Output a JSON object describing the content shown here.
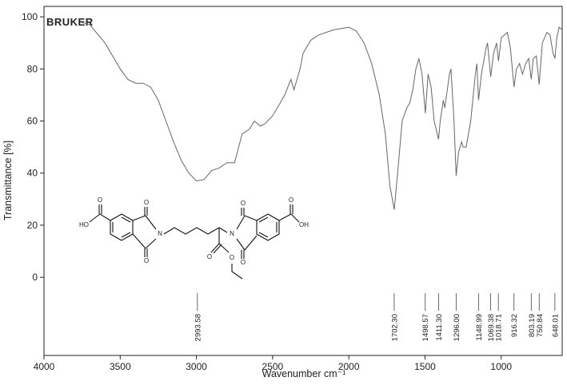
{
  "chart_data": {
    "type": "line",
    "brand": "BRUKER",
    "x_label": "Wavenumber cm⁻¹",
    "y_label": "Transmittance [%]",
    "color": "#666666",
    "xlim": [
      4000,
      600
    ],
    "ylim": [
      -30,
      104
    ],
    "xticks": [
      4000,
      3500,
      3000,
      2500,
      2000,
      1500,
      1000
    ],
    "yticks": [
      0,
      20,
      40,
      60,
      80,
      100
    ],
    "x": [
      3760,
      3700,
      3600,
      3500,
      3450,
      3400,
      3350,
      3300,
      3250,
      3200,
      3150,
      3100,
      3050,
      3000,
      2950,
      2900,
      2850,
      2800,
      2750,
      2700,
      2650,
      2620,
      2580,
      2550,
      2500,
      2450,
      2420,
      2400,
      2380,
      2360,
      2320,
      2300,
      2250,
      2200,
      2100,
      2000,
      1950,
      1900,
      1850,
      1800,
      1760,
      1730,
      1702,
      1680,
      1650,
      1620,
      1600,
      1580,
      1560,
      1540,
      1520,
      1498,
      1480,
      1460,
      1440,
      1411,
      1400,
      1380,
      1370,
      1340,
      1330,
      1310,
      1296,
      1280,
      1260,
      1250,
      1230,
      1200,
      1170,
      1160,
      1149,
      1130,
      1100,
      1090,
      1069,
      1050,
      1030,
      1018,
      1000,
      960,
      940,
      916,
      900,
      880,
      860,
      840,
      820,
      803,
      790,
      770,
      751,
      730,
      700,
      680,
      660,
      648,
      635,
      620,
      600
    ],
    "y": [
      98,
      97,
      90,
      80,
      76,
      74.5,
      74.5,
      73,
      68,
      60,
      52,
      45,
      40,
      37,
      37.5,
      41,
      42,
      44,
      44,
      55,
      57,
      60,
      58,
      59,
      62,
      67,
      70,
      73,
      76,
      72,
      80,
      86,
      91,
      93,
      95,
      96,
      94.5,
      90,
      82,
      70,
      55,
      35,
      26,
      40,
      60,
      65,
      67,
      72,
      80,
      84,
      78,
      63,
      78,
      73,
      60,
      53,
      60,
      68,
      65,
      78,
      80,
      60,
      39,
      48,
      52,
      50,
      50,
      60,
      78,
      82,
      68,
      78,
      88,
      90,
      77,
      86,
      90,
      83,
      92,
      94,
      88,
      73,
      80,
      82,
      78,
      82,
      84,
      76,
      84,
      85,
      74,
      90,
      94,
      93,
      86,
      84,
      92,
      96,
      95
    ],
    "peaks": [
      2993.58,
      {
        "value": 1702.3,
        "label": "1702.30"
      },
      1498.57,
      {
        "value": 1411.3,
        "label": "1411.30"
      },
      {
        "value": 1296,
        "label": "1296.00"
      },
      1148.99,
      1069.38,
      1018.71,
      916.32,
      803.19,
      750.84,
      648.01
    ],
    "structure_labels": [
      "O",
      "HO",
      "O",
      "N",
      "O",
      "N",
      "O",
      "O",
      "O",
      "O",
      "O",
      "OH"
    ]
  }
}
